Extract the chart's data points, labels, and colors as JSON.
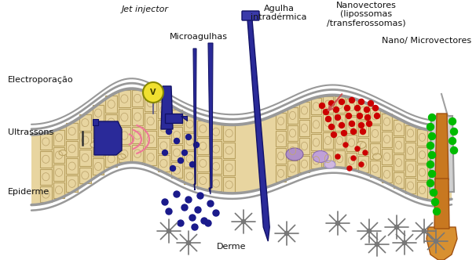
{
  "bg_color": "#ffffff",
  "labels": {
    "jet_injector": "Jet injector",
    "microagulhas": "Microagulhas",
    "agulha_line1": "Agulha",
    "agulha_line2": "intradérmica",
    "nanovectores_line1": "Nanovectores",
    "nanovectores_line2": "(lipossomas",
    "nanovectores_line3": "/transferossomas)",
    "nano_micro": "Nano/ Microvectores",
    "electroporacao": "Electroporação",
    "ultrassons": "Ultrassons",
    "epiderme": "Epiderme",
    "derme": "Derme"
  },
  "skin_color": "#e8d5a0",
  "skin_border_color": "#999999",
  "cell_border_color": "#b8a060",
  "device_color": "#2a2a8c",
  "red_dots_color": "#cc0000",
  "blue_dots_color": "#1a1a8c",
  "green_dots_color": "#00bb00",
  "hair_color": "#c87820"
}
